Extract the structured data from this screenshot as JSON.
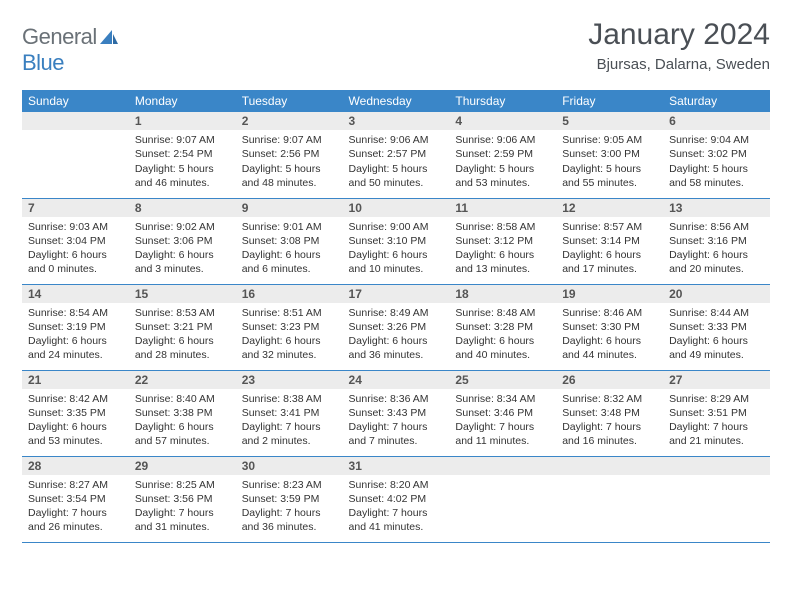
{
  "brand": {
    "general": "General",
    "blue": "Blue"
  },
  "title": {
    "month": "January 2024",
    "location": "Bjursas, Dalarna, Sweden"
  },
  "colors": {
    "header_bg": "#3a86c8",
    "header_text": "#ffffff",
    "daynum_bg": "#ececec",
    "daynum_text": "#555555",
    "row_border": "#3a86c8",
    "body_text": "#333333",
    "title_text": "#4a4f55",
    "logo_gray": "#6a7177",
    "logo_blue": "#3a7fbf",
    "page_bg": "#ffffff"
  },
  "typography": {
    "title_fontsize": 30,
    "location_fontsize": 15,
    "header_fontsize": 12,
    "daynum_fontsize": 12,
    "body_fontsize": 10.5,
    "logo_fontsize": 22
  },
  "weekdays": [
    "Sunday",
    "Monday",
    "Tuesday",
    "Wednesday",
    "Thursday",
    "Friday",
    "Saturday"
  ],
  "weeks": [
    [
      {
        "num": "",
        "sunrise": "",
        "sunset": "",
        "daylight": ""
      },
      {
        "num": "1",
        "sunrise": "Sunrise: 9:07 AM",
        "sunset": "Sunset: 2:54 PM",
        "daylight": "Daylight: 5 hours and 46 minutes."
      },
      {
        "num": "2",
        "sunrise": "Sunrise: 9:07 AM",
        "sunset": "Sunset: 2:56 PM",
        "daylight": "Daylight: 5 hours and 48 minutes."
      },
      {
        "num": "3",
        "sunrise": "Sunrise: 9:06 AM",
        "sunset": "Sunset: 2:57 PM",
        "daylight": "Daylight: 5 hours and 50 minutes."
      },
      {
        "num": "4",
        "sunrise": "Sunrise: 9:06 AM",
        "sunset": "Sunset: 2:59 PM",
        "daylight": "Daylight: 5 hours and 53 minutes."
      },
      {
        "num": "5",
        "sunrise": "Sunrise: 9:05 AM",
        "sunset": "Sunset: 3:00 PM",
        "daylight": "Daylight: 5 hours and 55 minutes."
      },
      {
        "num": "6",
        "sunrise": "Sunrise: 9:04 AM",
        "sunset": "Sunset: 3:02 PM",
        "daylight": "Daylight: 5 hours and 58 minutes."
      }
    ],
    [
      {
        "num": "7",
        "sunrise": "Sunrise: 9:03 AM",
        "sunset": "Sunset: 3:04 PM",
        "daylight": "Daylight: 6 hours and 0 minutes."
      },
      {
        "num": "8",
        "sunrise": "Sunrise: 9:02 AM",
        "sunset": "Sunset: 3:06 PM",
        "daylight": "Daylight: 6 hours and 3 minutes."
      },
      {
        "num": "9",
        "sunrise": "Sunrise: 9:01 AM",
        "sunset": "Sunset: 3:08 PM",
        "daylight": "Daylight: 6 hours and 6 minutes."
      },
      {
        "num": "10",
        "sunrise": "Sunrise: 9:00 AM",
        "sunset": "Sunset: 3:10 PM",
        "daylight": "Daylight: 6 hours and 10 minutes."
      },
      {
        "num": "11",
        "sunrise": "Sunrise: 8:58 AM",
        "sunset": "Sunset: 3:12 PM",
        "daylight": "Daylight: 6 hours and 13 minutes."
      },
      {
        "num": "12",
        "sunrise": "Sunrise: 8:57 AM",
        "sunset": "Sunset: 3:14 PM",
        "daylight": "Daylight: 6 hours and 17 minutes."
      },
      {
        "num": "13",
        "sunrise": "Sunrise: 8:56 AM",
        "sunset": "Sunset: 3:16 PM",
        "daylight": "Daylight: 6 hours and 20 minutes."
      }
    ],
    [
      {
        "num": "14",
        "sunrise": "Sunrise: 8:54 AM",
        "sunset": "Sunset: 3:19 PM",
        "daylight": "Daylight: 6 hours and 24 minutes."
      },
      {
        "num": "15",
        "sunrise": "Sunrise: 8:53 AM",
        "sunset": "Sunset: 3:21 PM",
        "daylight": "Daylight: 6 hours and 28 minutes."
      },
      {
        "num": "16",
        "sunrise": "Sunrise: 8:51 AM",
        "sunset": "Sunset: 3:23 PM",
        "daylight": "Daylight: 6 hours and 32 minutes."
      },
      {
        "num": "17",
        "sunrise": "Sunrise: 8:49 AM",
        "sunset": "Sunset: 3:26 PM",
        "daylight": "Daylight: 6 hours and 36 minutes."
      },
      {
        "num": "18",
        "sunrise": "Sunrise: 8:48 AM",
        "sunset": "Sunset: 3:28 PM",
        "daylight": "Daylight: 6 hours and 40 minutes."
      },
      {
        "num": "19",
        "sunrise": "Sunrise: 8:46 AM",
        "sunset": "Sunset: 3:30 PM",
        "daylight": "Daylight: 6 hours and 44 minutes."
      },
      {
        "num": "20",
        "sunrise": "Sunrise: 8:44 AM",
        "sunset": "Sunset: 3:33 PM",
        "daylight": "Daylight: 6 hours and 49 minutes."
      }
    ],
    [
      {
        "num": "21",
        "sunrise": "Sunrise: 8:42 AM",
        "sunset": "Sunset: 3:35 PM",
        "daylight": "Daylight: 6 hours and 53 minutes."
      },
      {
        "num": "22",
        "sunrise": "Sunrise: 8:40 AM",
        "sunset": "Sunset: 3:38 PM",
        "daylight": "Daylight: 6 hours and 57 minutes."
      },
      {
        "num": "23",
        "sunrise": "Sunrise: 8:38 AM",
        "sunset": "Sunset: 3:41 PM",
        "daylight": "Daylight: 7 hours and 2 minutes."
      },
      {
        "num": "24",
        "sunrise": "Sunrise: 8:36 AM",
        "sunset": "Sunset: 3:43 PM",
        "daylight": "Daylight: 7 hours and 7 minutes."
      },
      {
        "num": "25",
        "sunrise": "Sunrise: 8:34 AM",
        "sunset": "Sunset: 3:46 PM",
        "daylight": "Daylight: 7 hours and 11 minutes."
      },
      {
        "num": "26",
        "sunrise": "Sunrise: 8:32 AM",
        "sunset": "Sunset: 3:48 PM",
        "daylight": "Daylight: 7 hours and 16 minutes."
      },
      {
        "num": "27",
        "sunrise": "Sunrise: 8:29 AM",
        "sunset": "Sunset: 3:51 PM",
        "daylight": "Daylight: 7 hours and 21 minutes."
      }
    ],
    [
      {
        "num": "28",
        "sunrise": "Sunrise: 8:27 AM",
        "sunset": "Sunset: 3:54 PM",
        "daylight": "Daylight: 7 hours and 26 minutes."
      },
      {
        "num": "29",
        "sunrise": "Sunrise: 8:25 AM",
        "sunset": "Sunset: 3:56 PM",
        "daylight": "Daylight: 7 hours and 31 minutes."
      },
      {
        "num": "30",
        "sunrise": "Sunrise: 8:23 AM",
        "sunset": "Sunset: 3:59 PM",
        "daylight": "Daylight: 7 hours and 36 minutes."
      },
      {
        "num": "31",
        "sunrise": "Sunrise: 8:20 AM",
        "sunset": "Sunset: 4:02 PM",
        "daylight": "Daylight: 7 hours and 41 minutes."
      },
      {
        "num": "",
        "sunrise": "",
        "sunset": "",
        "daylight": ""
      },
      {
        "num": "",
        "sunrise": "",
        "sunset": "",
        "daylight": ""
      },
      {
        "num": "",
        "sunrise": "",
        "sunset": "",
        "daylight": ""
      }
    ]
  ]
}
